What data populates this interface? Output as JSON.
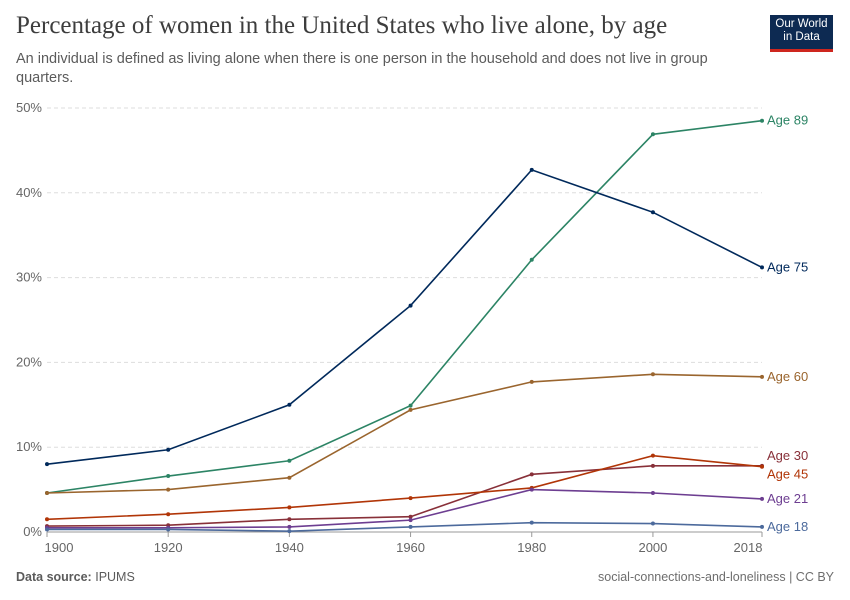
{
  "header": {
    "title": "Percentage of women in the United States who live alone, by age",
    "subtitle": "An individual is defined as living alone when there is one person in the household and does not live in group quarters.",
    "logo": "Our World in Data"
  },
  "footer": {
    "source_label": "Data source:",
    "source": "IPUMS",
    "license": "social-connections-and-loneliness | CC BY"
  },
  "chart_data": {
    "type": "line",
    "title": "Percentage of women in the United States who live alone, by age",
    "x": [
      1900,
      1920,
      1940,
      1960,
      1980,
      2000,
      2018
    ],
    "xticks": [
      "1900",
      "1920",
      "1940",
      "1960",
      "1980",
      "2000",
      "2018"
    ],
    "yticks": [
      "0%",
      "10%",
      "20%",
      "30%",
      "40%",
      "50%"
    ],
    "ylim": [
      0,
      50
    ],
    "grid": "horizontal dashed",
    "legend": "inline labels at right end",
    "series": [
      {
        "name": "Age 89",
        "color": "#2c8465",
        "values": [
          4.6,
          6.6,
          8.4,
          14.9,
          32.1,
          46.9,
          48.5
        ]
      },
      {
        "name": "Age 75",
        "color": "#00295b",
        "values": [
          8.0,
          9.7,
          15.0,
          26.7,
          42.7,
          37.7,
          31.2
        ]
      },
      {
        "name": "Age 60",
        "color": "#9a652e",
        "values": [
          4.6,
          5.0,
          6.4,
          14.4,
          17.7,
          18.6,
          18.3
        ]
      },
      {
        "name": "Age 30",
        "color": "#883039",
        "values": [
          0.7,
          0.8,
          1.5,
          1.8,
          6.8,
          7.8,
          7.8
        ]
      },
      {
        "name": "Age 45",
        "color": "#b13507",
        "values": [
          1.5,
          2.1,
          2.9,
          4.0,
          5.2,
          9.0,
          7.7
        ]
      },
      {
        "name": "Age 21",
        "color": "#6d3e91",
        "values": [
          0.5,
          0.5,
          0.6,
          1.4,
          5.0,
          4.6,
          3.9
        ]
      },
      {
        "name": "Age 18",
        "color": "#4c6a9c",
        "values": [
          0.3,
          0.3,
          0.1,
          0.6,
          1.1,
          1.0,
          0.6
        ]
      }
    ]
  }
}
